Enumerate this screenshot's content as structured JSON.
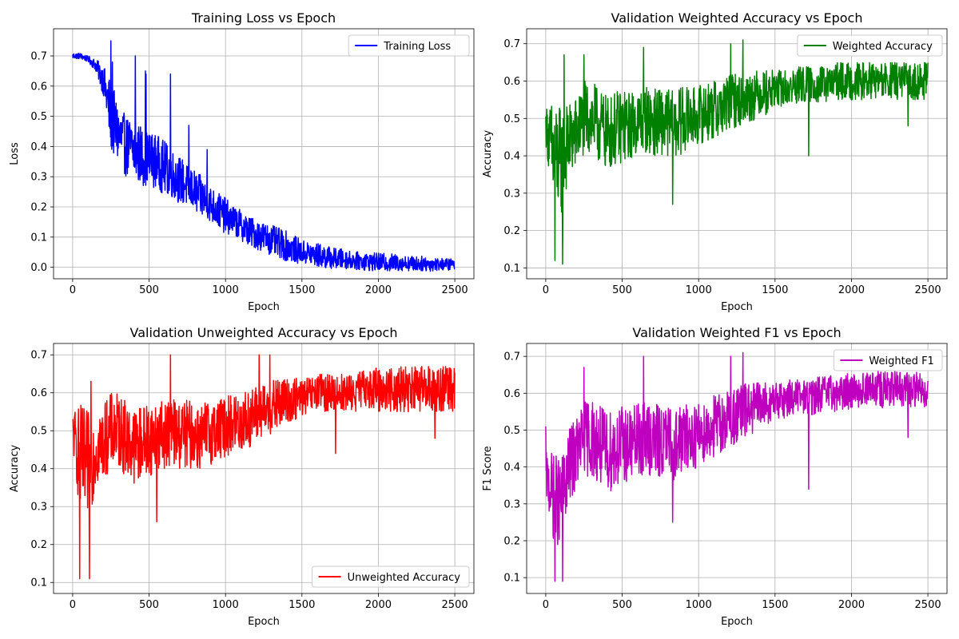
{
  "chart_data": [
    {
      "type": "line",
      "title": "Training Loss vs Epoch",
      "xlabel": "Epoch",
      "ylabel": "Loss",
      "xlim": [
        -125,
        2625
      ],
      "ylim": [
        -0.038,
        0.79
      ],
      "xticks": [
        0,
        500,
        1000,
        1500,
        2000,
        2500
      ],
      "yticks": [
        0.0,
        0.1,
        0.2,
        0.3,
        0.4,
        0.5,
        0.6,
        0.7
      ],
      "ytick_labels": [
        "0.0",
        "0.1",
        "0.2",
        "0.3",
        "0.4",
        "0.5",
        "0.6",
        "0.7"
      ],
      "grid": true,
      "legend_position": "upper right",
      "series": [
        {
          "name": "Training Loss",
          "color": "#0000ff",
          "x": [
            0,
            50,
            100,
            150,
            200,
            250,
            300,
            350,
            400,
            450,
            500,
            550,
            600,
            650,
            700,
            750,
            800,
            850,
            900,
            950,
            1000,
            1050,
            1100,
            1150,
            1200,
            1250,
            1300,
            1350,
            1400,
            1450,
            1500,
            1550,
            1600,
            1650,
            1700,
            1750,
            1800,
            1850,
            1900,
            1950,
            2000,
            2050,
            2100,
            2150,
            2200,
            2250,
            2300,
            2350,
            2400,
            2450,
            2500
          ],
          "values": [
            0.7,
            0.7,
            0.69,
            0.67,
            0.62,
            0.5,
            0.44,
            0.4,
            0.39,
            0.37,
            0.36,
            0.35,
            0.33,
            0.31,
            0.29,
            0.27,
            0.25,
            0.23,
            0.21,
            0.19,
            0.17,
            0.155,
            0.14,
            0.12,
            0.11,
            0.1,
            0.09,
            0.08,
            0.07,
            0.06,
            0.05,
            0.045,
            0.04,
            0.035,
            0.03,
            0.028,
            0.025,
            0.022,
            0.02,
            0.018,
            0.017,
            0.016,
            0.015,
            0.014,
            0.013,
            0.012,
            0.012,
            0.011,
            0.01,
            0.01,
            0.01
          ],
          "noise": [
            0.01,
            0.01,
            0.01,
            0.02,
            0.05,
            0.12,
            0.1,
            0.1,
            0.1,
            0.1,
            0.09,
            0.09,
            0.09,
            0.08,
            0.08,
            0.07,
            0.07,
            0.07,
            0.06,
            0.06,
            0.06,
            0.05,
            0.05,
            0.05,
            0.05,
            0.05,
            0.05,
            0.05,
            0.05,
            0.045,
            0.04,
            0.04,
            0.04,
            0.04,
            0.035,
            0.035,
            0.03,
            0.03,
            0.03,
            0.03,
            0.03,
            0.03,
            0.03,
            0.025,
            0.025,
            0.025,
            0.025,
            0.025,
            0.02,
            0.02,
            0.02
          ],
          "spikes": [
            [
              250,
              0.75
            ],
            [
              260,
              0.68
            ],
            [
              410,
              0.7
            ],
            [
              475,
              0.65
            ],
            [
              480,
              0.64
            ],
            [
              640,
              0.64
            ],
            [
              760,
              0.47
            ],
            [
              880,
              0.39
            ]
          ]
        }
      ]
    },
    {
      "type": "line",
      "title": "Validation Weighted Accuracy vs Epoch",
      "xlabel": "Epoch",
      "ylabel": "Accuracy",
      "xlim": [
        -125,
        2625
      ],
      "ylim": [
        0.071,
        0.74
      ],
      "xticks": [
        0,
        500,
        1000,
        1500,
        2000,
        2500
      ],
      "yticks": [
        0.1,
        0.2,
        0.3,
        0.4,
        0.5,
        0.6,
        0.7
      ],
      "ytick_labels": [
        "0.1",
        "0.2",
        "0.3",
        "0.4",
        "0.5",
        "0.6",
        "0.7"
      ],
      "grid": true,
      "legend_position": "upper right",
      "series": [
        {
          "name": "Weighted Accuracy",
          "color": "#008000",
          "x": [
            0,
            50,
            100,
            150,
            200,
            250,
            300,
            350,
            400,
            450,
            500,
            550,
            600,
            650,
            700,
            750,
            800,
            850,
            900,
            950,
            1000,
            1050,
            1100,
            1150,
            1200,
            1250,
            1300,
            1350,
            1400,
            1450,
            1500,
            1550,
            1600,
            1650,
            1700,
            1750,
            1800,
            1850,
            1900,
            1950,
            2000,
            2050,
            2100,
            2150,
            2200,
            2250,
            2300,
            2350,
            2400,
            2450,
            2500
          ],
          "values": [
            0.48,
            0.4,
            0.38,
            0.44,
            0.46,
            0.5,
            0.5,
            0.48,
            0.46,
            0.47,
            0.48,
            0.48,
            0.49,
            0.5,
            0.49,
            0.49,
            0.49,
            0.48,
            0.5,
            0.5,
            0.51,
            0.52,
            0.52,
            0.53,
            0.54,
            0.55,
            0.55,
            0.56,
            0.57,
            0.57,
            0.58,
            0.58,
            0.58,
            0.59,
            0.59,
            0.59,
            0.59,
            0.59,
            0.6,
            0.6,
            0.6,
            0.6,
            0.6,
            0.6,
            0.6,
            0.6,
            0.6,
            0.6,
            0.6,
            0.6,
            0.6
          ],
          "noise": [
            0.05,
            0.15,
            0.15,
            0.1,
            0.1,
            0.1,
            0.1,
            0.1,
            0.1,
            0.1,
            0.1,
            0.09,
            0.09,
            0.09,
            0.09,
            0.09,
            0.09,
            0.09,
            0.09,
            0.08,
            0.08,
            0.08,
            0.08,
            0.08,
            0.08,
            0.07,
            0.07,
            0.07,
            0.06,
            0.06,
            0.05,
            0.05,
            0.05,
            0.05,
            0.05,
            0.05,
            0.05,
            0.05,
            0.05,
            0.05,
            0.05,
            0.05,
            0.05,
            0.05,
            0.05,
            0.05,
            0.05,
            0.05,
            0.05,
            0.05,
            0.05
          ],
          "spikes": [
            [
              60,
              0.12
            ],
            [
              110,
              0.11
            ],
            [
              120,
              0.67
            ],
            [
              250,
              0.67
            ],
            [
              640,
              0.69
            ],
            [
              830,
              0.27
            ],
            [
              1210,
              0.7
            ],
            [
              1290,
              0.71
            ],
            [
              1720,
              0.4
            ],
            [
              2370,
              0.48
            ]
          ]
        }
      ]
    },
    {
      "type": "line",
      "title": "Validation Unweighted Accuracy vs Epoch",
      "xlabel": "Epoch",
      "ylabel": "Accuracy",
      "xlim": [
        -125,
        2625
      ],
      "ylim": [
        0.071,
        0.73
      ],
      "xticks": [
        0,
        500,
        1000,
        1500,
        2000,
        2500
      ],
      "yticks": [
        0.1,
        0.2,
        0.3,
        0.4,
        0.5,
        0.6,
        0.7
      ],
      "ytick_labels": [
        "0.1",
        "0.2",
        "0.3",
        "0.4",
        "0.5",
        "0.6",
        "0.7"
      ],
      "grid": true,
      "legend_position": "lower right",
      "series": [
        {
          "name": "Unweighted Accuracy",
          "color": "#ff0000",
          "x": [
            0,
            50,
            100,
            150,
            200,
            250,
            300,
            350,
            400,
            450,
            500,
            550,
            600,
            650,
            700,
            750,
            800,
            850,
            900,
            950,
            1000,
            1050,
            1100,
            1150,
            1200,
            1250,
            1300,
            1350,
            1400,
            1450,
            1500,
            1550,
            1600,
            1650,
            1700,
            1750,
            1800,
            1850,
            1900,
            1950,
            2000,
            2050,
            2100,
            2150,
            2200,
            2250,
            2300,
            2350,
            2400,
            2450,
            2500
          ],
          "values": [
            0.5,
            0.42,
            0.4,
            0.45,
            0.47,
            0.5,
            0.5,
            0.48,
            0.46,
            0.47,
            0.48,
            0.48,
            0.49,
            0.5,
            0.49,
            0.49,
            0.49,
            0.48,
            0.5,
            0.5,
            0.51,
            0.52,
            0.52,
            0.53,
            0.54,
            0.55,
            0.56,
            0.57,
            0.58,
            0.58,
            0.59,
            0.59,
            0.6,
            0.6,
            0.6,
            0.6,
            0.6,
            0.6,
            0.61,
            0.61,
            0.61,
            0.61,
            0.61,
            0.61,
            0.61,
            0.61,
            0.61,
            0.61,
            0.61,
            0.61,
            0.61
          ],
          "noise": [
            0.05,
            0.15,
            0.15,
            0.1,
            0.1,
            0.1,
            0.1,
            0.1,
            0.1,
            0.1,
            0.1,
            0.09,
            0.09,
            0.09,
            0.09,
            0.09,
            0.09,
            0.09,
            0.09,
            0.08,
            0.08,
            0.08,
            0.08,
            0.08,
            0.08,
            0.07,
            0.07,
            0.07,
            0.06,
            0.06,
            0.05,
            0.05,
            0.05,
            0.05,
            0.05,
            0.05,
            0.05,
            0.05,
            0.05,
            0.05,
            0.06,
            0.06,
            0.06,
            0.06,
            0.06,
            0.06,
            0.06,
            0.06,
            0.06,
            0.06,
            0.06
          ],
          "spikes": [
            [
              45,
              0.11
            ],
            [
              110,
              0.11
            ],
            [
              120,
              0.63
            ],
            [
              550,
              0.26
            ],
            [
              640,
              0.7
            ],
            [
              1220,
              0.7
            ],
            [
              1290,
              0.7
            ],
            [
              1720,
              0.44
            ],
            [
              2370,
              0.48
            ]
          ]
        }
      ]
    },
    {
      "type": "line",
      "title": "Validation Weighted F1 vs Epoch",
      "xlabel": "Epoch",
      "ylabel": "F1 Score",
      "xlim": [
        -125,
        2625
      ],
      "ylim": [
        0.057,
        0.735
      ],
      "xticks": [
        0,
        500,
        1000,
        1500,
        2000,
        2500
      ],
      "yticks": [
        0.1,
        0.2,
        0.3,
        0.4,
        0.5,
        0.6,
        0.7
      ],
      "ytick_labels": [
        "0.1",
        "0.2",
        "0.3",
        "0.4",
        "0.5",
        "0.6",
        "0.7"
      ],
      "grid": true,
      "legend_position": "upper right",
      "series": [
        {
          "name": "Weighted F1",
          "color": "#bf00bf",
          "x": [
            0,
            50,
            100,
            150,
            200,
            250,
            300,
            350,
            400,
            450,
            500,
            550,
            600,
            650,
            700,
            750,
            800,
            850,
            900,
            950,
            1000,
            1050,
            1100,
            1150,
            1200,
            1250,
            1300,
            1350,
            1400,
            1450,
            1500,
            1550,
            1600,
            1650,
            1700,
            1750,
            1800,
            1850,
            1900,
            1950,
            2000,
            2050,
            2100,
            2150,
            2200,
            2250,
            2300,
            2350,
            2400,
            2450,
            2500
          ],
          "values": [
            0.38,
            0.32,
            0.3,
            0.4,
            0.44,
            0.48,
            0.48,
            0.46,
            0.44,
            0.45,
            0.46,
            0.46,
            0.47,
            0.48,
            0.47,
            0.47,
            0.47,
            0.46,
            0.48,
            0.48,
            0.49,
            0.5,
            0.51,
            0.52,
            0.53,
            0.54,
            0.55,
            0.56,
            0.57,
            0.57,
            0.58,
            0.58,
            0.59,
            0.59,
            0.59,
            0.59,
            0.6,
            0.6,
            0.6,
            0.6,
            0.61,
            0.61,
            0.61,
            0.61,
            0.61,
            0.61,
            0.61,
            0.61,
            0.61,
            0.61,
            0.61
          ],
          "noise": [
            0.06,
            0.12,
            0.12,
            0.1,
            0.1,
            0.1,
            0.11,
            0.11,
            0.11,
            0.11,
            0.11,
            0.1,
            0.1,
            0.1,
            0.1,
            0.1,
            0.1,
            0.1,
            0.09,
            0.09,
            0.09,
            0.09,
            0.09,
            0.08,
            0.08,
            0.08,
            0.08,
            0.07,
            0.06,
            0.06,
            0.05,
            0.05,
            0.05,
            0.05,
            0.05,
            0.05,
            0.05,
            0.05,
            0.05,
            0.05,
            0.05,
            0.05,
            0.05,
            0.05,
            0.05,
            0.05,
            0.05,
            0.05,
            0.05,
            0.05,
            0.05
          ],
          "spikes": [
            [
              0,
              0.51
            ],
            [
              60,
              0.09
            ],
            [
              110,
              0.09
            ],
            [
              250,
              0.67
            ],
            [
              640,
              0.7
            ],
            [
              830,
              0.25
            ],
            [
              1210,
              0.7
            ],
            [
              1290,
              0.71
            ],
            [
              1720,
              0.34
            ],
            [
              2370,
              0.48
            ]
          ]
        }
      ]
    }
  ]
}
